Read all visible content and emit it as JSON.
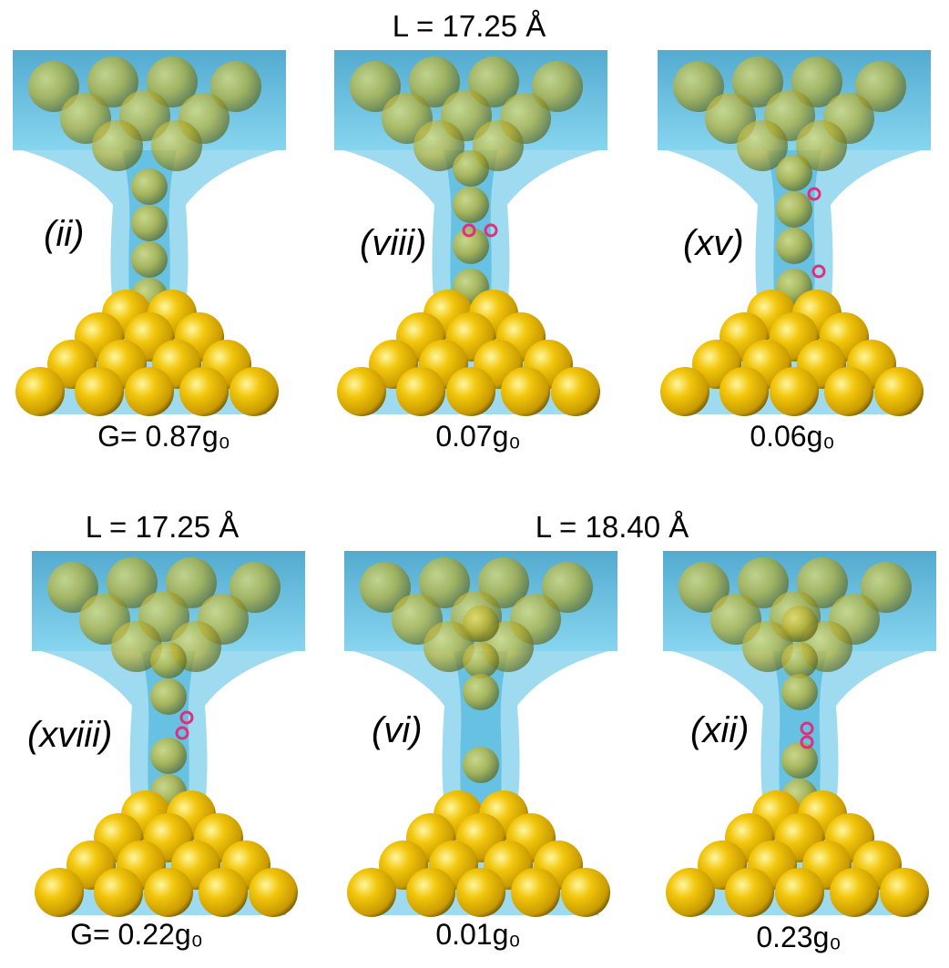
{
  "headers": [
    {
      "text": "L = 17.25 Å"
    },
    {
      "text": "L = 17.25 Å"
    },
    {
      "text": "L = 18.40 Å"
    }
  ],
  "panels": [
    {
      "label": "(ii)",
      "conductance": "G= 0.87g₀"
    },
    {
      "label": "(viii)",
      "conductance": "0.07g₀"
    },
    {
      "label": "(xv)",
      "conductance": "0.06g₀"
    },
    {
      "label": "(xviii)",
      "conductance": "G= 0.22g₀"
    },
    {
      "label": "(vi)",
      "conductance": "0.01g₀"
    },
    {
      "label": "(xii)",
      "conductance": "0.23g₀"
    }
  ]
}
